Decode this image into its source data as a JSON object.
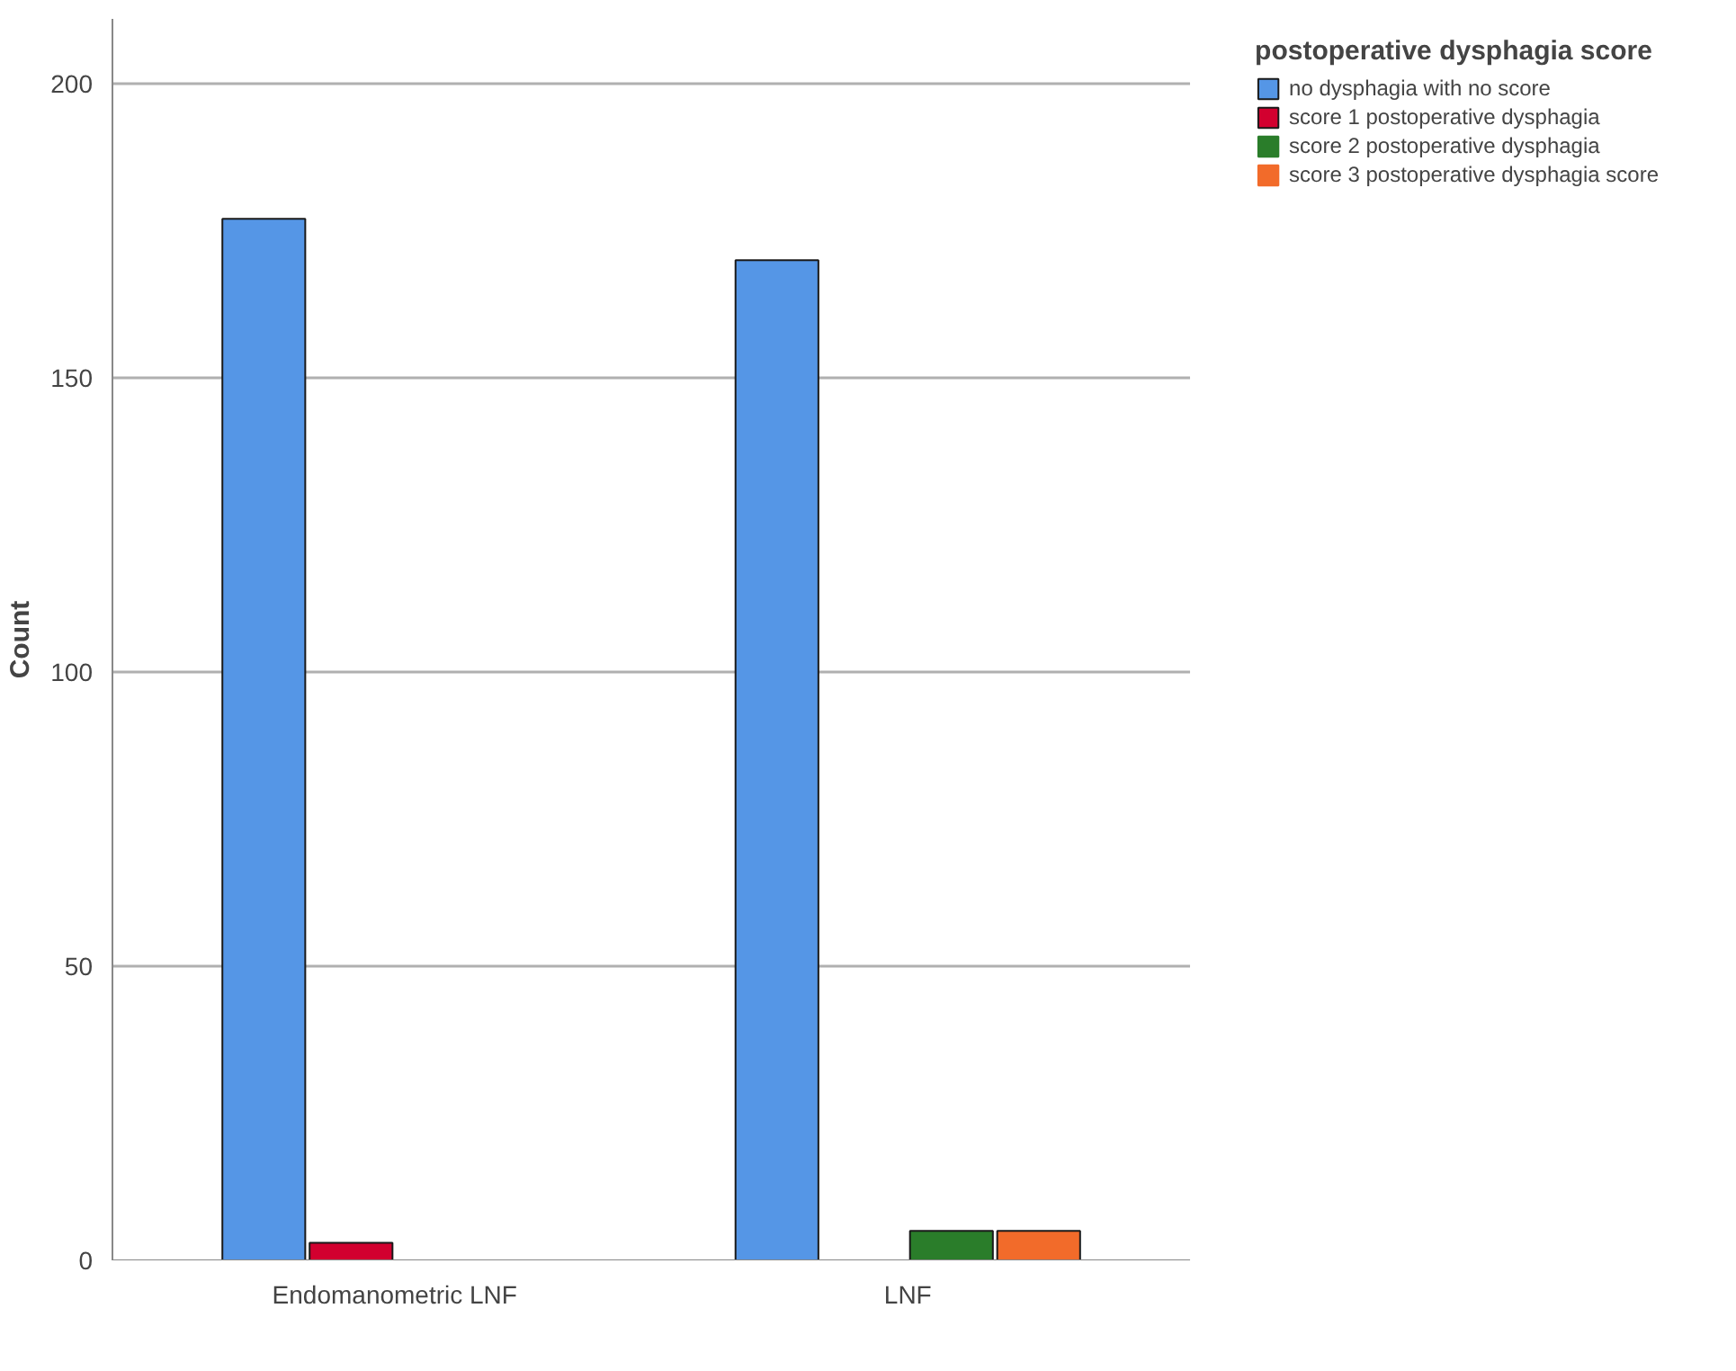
{
  "chart_data": {
    "type": "bar",
    "categories": [
      "Endomanometric LNF",
      "LNF"
    ],
    "ylabel": "Count",
    "legend_title": "postoperative dysphagia score",
    "series": [
      {
        "name": "no dysphagia with no score",
        "color": "#5596e6",
        "values": [
          177,
          170
        ]
      },
      {
        "name": "score 1 postoperative dysphagia",
        "color": "#d2002f",
        "values": [
          3,
          0
        ]
      },
      {
        "name": "score 2 postoperative dysphagia",
        "color": "#2a7d2a",
        "values": [
          0,
          5
        ]
      },
      {
        "name": "score 3 postoperative dysphagia score",
        "color": "#f26b2a",
        "values": [
          0,
          5
        ]
      }
    ],
    "ylim": [
      0,
      211
    ],
    "yticks": [
      0,
      50,
      100,
      150,
      200
    ],
    "grid": "y",
    "legend": "top right"
  }
}
